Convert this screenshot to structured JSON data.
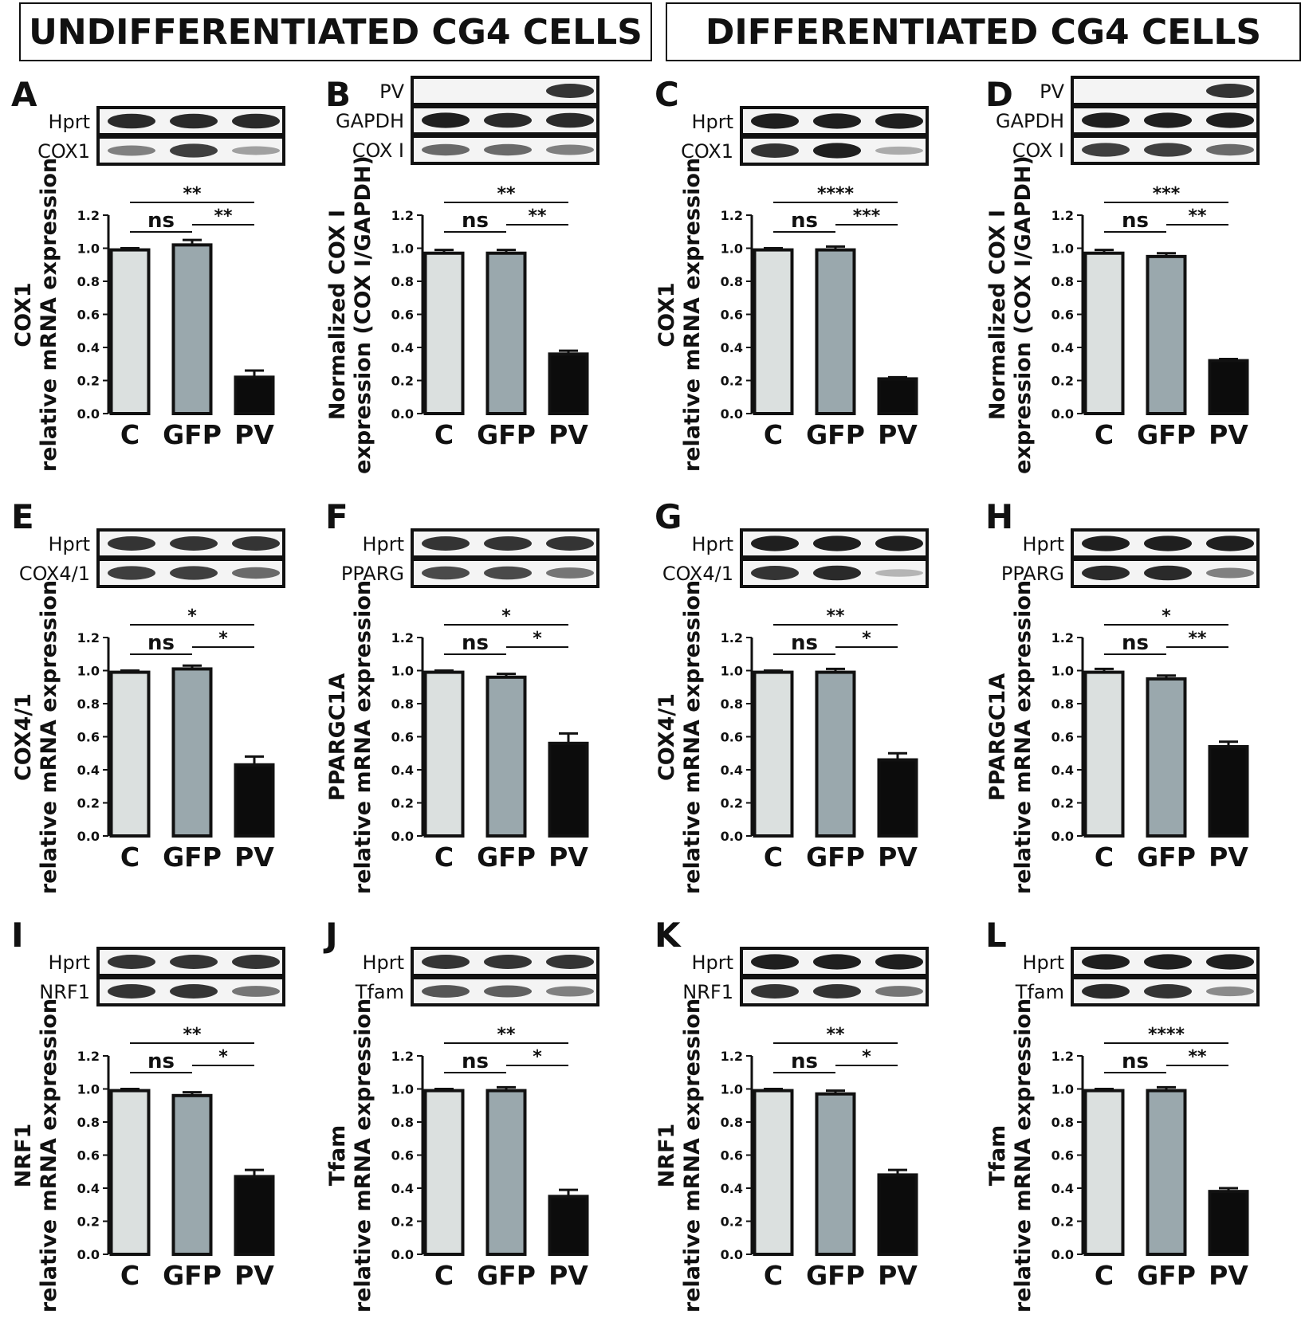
{
  "headers": {
    "left": "UNDIFFERENTIATED CG4 CELLS",
    "right": "DIFFERENTIATED CG4 CELLS"
  },
  "colors": {
    "C": "#dbe0df",
    "GFP": "#9aa8ad",
    "PV": "#0c0c0c",
    "axis": "#111111"
  },
  "chart_data": [
    {
      "panel": "A",
      "type": "bar",
      "categories": [
        "C",
        "GFP",
        "PV"
      ],
      "values": [
        0.99,
        1.02,
        0.22
      ],
      "errors": [
        0.01,
        0.03,
        0.04
      ],
      "ylabel": [
        "COX1",
        "relative mRNA expression"
      ],
      "ylim": [
        0,
        1.2
      ],
      "ticks": [
        "0.0",
        "0.2",
        "0.4",
        "0.6",
        "0.8",
        "1.0",
        "1.2"
      ],
      "blot": [
        {
          "label": "Hprt",
          "intensity": [
            0.9,
            0.9,
            0.9
          ]
        },
        {
          "label": "COX1",
          "intensity": [
            0.5,
            0.8,
            0.35
          ]
        }
      ],
      "sig": [
        {
          "from": 0,
          "to": 2,
          "label": "**"
        },
        {
          "from": 0,
          "to": 1,
          "label": "ns"
        },
        {
          "from": 1,
          "to": 2,
          "label": "**"
        }
      ]
    },
    {
      "panel": "B",
      "type": "bar",
      "categories": [
        "C",
        "GFP",
        "PV"
      ],
      "values": [
        0.97,
        0.97,
        0.36
      ],
      "errors": [
        0.02,
        0.02,
        0.02
      ],
      "ylabel": [
        "Normalized COX I",
        "expression (COX I/GAPDH)"
      ],
      "ylim": [
        0,
        1.2
      ],
      "ticks": [
        "0.0",
        "0.2",
        "0.4",
        "0.6",
        "0.8",
        "1.0",
        "1.2"
      ],
      "blot": [
        {
          "label": "PV",
          "intensity": [
            0,
            0,
            0.85
          ]
        },
        {
          "label": "GAPDH",
          "intensity": [
            0.95,
            0.9,
            0.9
          ]
        },
        {
          "label": "COX I",
          "intensity": [
            0.6,
            0.6,
            0.5
          ]
        }
      ],
      "sig": [
        {
          "from": 0,
          "to": 2,
          "label": "**"
        },
        {
          "from": 0,
          "to": 1,
          "label": "ns"
        },
        {
          "from": 1,
          "to": 2,
          "label": "**"
        }
      ]
    },
    {
      "panel": "C",
      "type": "bar",
      "categories": [
        "C",
        "GFP",
        "PV"
      ],
      "values": [
        0.99,
        0.99,
        0.21
      ],
      "errors": [
        0.01,
        0.02,
        0.01
      ],
      "ylabel": [
        "COX1",
        "relative mRNA expression"
      ],
      "ylim": [
        0,
        1.2
      ],
      "ticks": [
        "0.0",
        "0.2",
        "0.4",
        "0.6",
        "0.8",
        "1.0",
        "1.2"
      ],
      "blot": [
        {
          "label": "Hprt",
          "intensity": [
            0.95,
            0.95,
            0.95
          ]
        },
        {
          "label": "COX1",
          "intensity": [
            0.85,
            0.95,
            0.3
          ]
        }
      ],
      "sig": [
        {
          "from": 0,
          "to": 2,
          "label": "****"
        },
        {
          "from": 0,
          "to": 1,
          "label": "ns"
        },
        {
          "from": 1,
          "to": 2,
          "label": "***"
        }
      ]
    },
    {
      "panel": "D",
      "type": "bar",
      "categories": [
        "C",
        "GFP",
        "PV"
      ],
      "values": [
        0.97,
        0.95,
        0.32
      ],
      "errors": [
        0.02,
        0.02,
        0.01
      ],
      "ylabel": [
        "Normalized COX I",
        "expression (COX I/GAPDH)"
      ],
      "ylim": [
        0,
        1.2
      ],
      "ticks": [
        "0.0",
        "0.2",
        "0.4",
        "0.6",
        "0.8",
        "1.0",
        "1.2"
      ],
      "blot": [
        {
          "label": "PV",
          "intensity": [
            0,
            0,
            0.85
          ]
        },
        {
          "label": "GAPDH",
          "intensity": [
            0.95,
            0.95,
            0.95
          ]
        },
        {
          "label": "COX I",
          "intensity": [
            0.8,
            0.8,
            0.6
          ]
        }
      ],
      "sig": [
        {
          "from": 0,
          "to": 2,
          "label": "***"
        },
        {
          "from": 0,
          "to": 1,
          "label": "ns"
        },
        {
          "from": 1,
          "to": 2,
          "label": "**"
        }
      ]
    },
    {
      "panel": "E",
      "type": "bar",
      "categories": [
        "C",
        "GFP",
        "PV"
      ],
      "values": [
        0.99,
        1.01,
        0.43
      ],
      "errors": [
        0.01,
        0.02,
        0.05
      ],
      "ylabel": [
        "COX4/1",
        "relative mRNA expression"
      ],
      "ylim": [
        0,
        1.2
      ],
      "ticks": [
        "0.0",
        "0.2",
        "0.4",
        "0.6",
        "0.8",
        "1.0",
        "1.2"
      ],
      "blot": [
        {
          "label": "Hprt",
          "intensity": [
            0.85,
            0.85,
            0.85
          ]
        },
        {
          "label": "COX4/1",
          "intensity": [
            0.8,
            0.8,
            0.6
          ]
        }
      ],
      "sig": [
        {
          "from": 0,
          "to": 2,
          "label": "*"
        },
        {
          "from": 0,
          "to": 1,
          "label": "ns"
        },
        {
          "from": 1,
          "to": 2,
          "label": "*"
        }
      ]
    },
    {
      "panel": "F",
      "type": "bar",
      "categories": [
        "C",
        "GFP",
        "PV"
      ],
      "values": [
        0.99,
        0.96,
        0.56
      ],
      "errors": [
        0.01,
        0.02,
        0.06
      ],
      "ylabel": [
        "PPARGC1A",
        "relative mRNA expression"
      ],
      "ylim": [
        0,
        1.2
      ],
      "ticks": [
        "0.0",
        "0.2",
        "0.4",
        "0.6",
        "0.8",
        "1.0",
        "1.2"
      ],
      "blot": [
        {
          "label": "Hprt",
          "intensity": [
            0.85,
            0.85,
            0.85
          ]
        },
        {
          "label": "PPARG",
          "intensity": [
            0.75,
            0.75,
            0.55
          ]
        }
      ],
      "sig": [
        {
          "from": 0,
          "to": 2,
          "label": "*"
        },
        {
          "from": 0,
          "to": 1,
          "label": "ns"
        },
        {
          "from": 1,
          "to": 2,
          "label": "*"
        }
      ]
    },
    {
      "panel": "G",
      "type": "bar",
      "categories": [
        "C",
        "GFP",
        "PV"
      ],
      "values": [
        0.99,
        0.99,
        0.46
      ],
      "errors": [
        0.01,
        0.02,
        0.04
      ],
      "ylabel": [
        "COX4/1",
        "relative mRNA expression"
      ],
      "ylim": [
        0,
        1.2
      ],
      "ticks": [
        "0.0",
        "0.2",
        "0.4",
        "0.6",
        "0.8",
        "1.0",
        "1.2"
      ],
      "blot": [
        {
          "label": "Hprt",
          "intensity": [
            0.95,
            0.95,
            0.95
          ]
        },
        {
          "label": "COX4/1",
          "intensity": [
            0.85,
            0.9,
            0.25
          ]
        }
      ],
      "sig": [
        {
          "from": 0,
          "to": 2,
          "label": "**"
        },
        {
          "from": 0,
          "to": 1,
          "label": "ns"
        },
        {
          "from": 1,
          "to": 2,
          "label": "*"
        }
      ]
    },
    {
      "panel": "H",
      "type": "bar",
      "categories": [
        "C",
        "GFP",
        "PV"
      ],
      "values": [
        0.99,
        0.95,
        0.54
      ],
      "errors": [
        0.02,
        0.02,
        0.03
      ],
      "ylabel": [
        "PPARGC1A",
        "relative mRNA expression"
      ],
      "ylim": [
        0,
        1.2
      ],
      "ticks": [
        "0.0",
        "0.2",
        "0.4",
        "0.6",
        "0.8",
        "1.0",
        "1.2"
      ],
      "blot": [
        {
          "label": "Hprt",
          "intensity": [
            0.95,
            0.95,
            0.95
          ]
        },
        {
          "label": "PPARG",
          "intensity": [
            0.9,
            0.9,
            0.5
          ]
        }
      ],
      "sig": [
        {
          "from": 0,
          "to": 2,
          "label": "*"
        },
        {
          "from": 0,
          "to": 1,
          "label": "ns"
        },
        {
          "from": 1,
          "to": 2,
          "label": "**"
        }
      ]
    },
    {
      "panel": "I",
      "type": "bar",
      "categories": [
        "C",
        "GFP",
        "PV"
      ],
      "values": [
        0.99,
        0.96,
        0.47
      ],
      "errors": [
        0.01,
        0.02,
        0.04
      ],
      "ylabel": [
        "NRF1",
        "relative mRNA expression"
      ],
      "ylim": [
        0,
        1.2
      ],
      "ticks": [
        "0.0",
        "0.2",
        "0.4",
        "0.6",
        "0.8",
        "1.0",
        "1.2"
      ],
      "blot": [
        {
          "label": "Hprt",
          "intensity": [
            0.85,
            0.85,
            0.85
          ]
        },
        {
          "label": "NRF1",
          "intensity": [
            0.85,
            0.85,
            0.55
          ]
        }
      ],
      "sig": [
        {
          "from": 0,
          "to": 2,
          "label": "**"
        },
        {
          "from": 0,
          "to": 1,
          "label": "ns"
        },
        {
          "from": 1,
          "to": 2,
          "label": "*"
        }
      ]
    },
    {
      "panel": "J",
      "type": "bar",
      "categories": [
        "C",
        "GFP",
        "PV"
      ],
      "values": [
        0.99,
        0.99,
        0.35
      ],
      "errors": [
        0.01,
        0.02,
        0.04
      ],
      "ylabel": [
        "Tfam",
        "relative mRNA expression"
      ],
      "ylim": [
        0,
        1.2
      ],
      "ticks": [
        "0.0",
        "0.2",
        "0.4",
        "0.6",
        "0.8",
        "1.0",
        "1.2"
      ],
      "blot": [
        {
          "label": "Hprt",
          "intensity": [
            0.85,
            0.85,
            0.85
          ]
        },
        {
          "label": "Tfam",
          "intensity": [
            0.7,
            0.65,
            0.5
          ]
        }
      ],
      "sig": [
        {
          "from": 0,
          "to": 2,
          "label": "**"
        },
        {
          "from": 0,
          "to": 1,
          "label": "ns"
        },
        {
          "from": 1,
          "to": 2,
          "label": "*"
        }
      ]
    },
    {
      "panel": "K",
      "type": "bar",
      "categories": [
        "C",
        "GFP",
        "PV"
      ],
      "values": [
        0.99,
        0.97,
        0.48
      ],
      "errors": [
        0.01,
        0.02,
        0.03
      ],
      "ylabel": [
        "NRF1",
        "relative mRNA expression"
      ],
      "ylim": [
        0,
        1.2
      ],
      "ticks": [
        "0.0",
        "0.2",
        "0.4",
        "0.6",
        "0.8",
        "1.0",
        "1.2"
      ],
      "blot": [
        {
          "label": "Hprt",
          "intensity": [
            0.95,
            0.95,
            0.95
          ]
        },
        {
          "label": "NRF1",
          "intensity": [
            0.85,
            0.85,
            0.55
          ]
        }
      ],
      "sig": [
        {
          "from": 0,
          "to": 2,
          "label": "**"
        },
        {
          "from": 0,
          "to": 1,
          "label": "ns"
        },
        {
          "from": 1,
          "to": 2,
          "label": "*"
        }
      ]
    },
    {
      "panel": "L",
      "type": "bar",
      "categories": [
        "C",
        "GFP",
        "PV"
      ],
      "values": [
        0.99,
        0.99,
        0.38
      ],
      "errors": [
        0.01,
        0.02,
        0.02
      ],
      "ylabel": [
        "Tfam",
        "relative mRNA expression"
      ],
      "ylim": [
        0,
        1.2
      ],
      "ticks": [
        "0.0",
        "0.2",
        "0.4",
        "0.6",
        "0.8",
        "1.0",
        "1.2"
      ],
      "blot": [
        {
          "label": "Hprt",
          "intensity": [
            0.95,
            0.95,
            0.95
          ]
        },
        {
          "label": "Tfam",
          "intensity": [
            0.9,
            0.85,
            0.45
          ]
        }
      ],
      "sig": [
        {
          "from": 0,
          "to": 2,
          "label": "****"
        },
        {
          "from": 0,
          "to": 1,
          "label": "ns"
        },
        {
          "from": 1,
          "to": 2,
          "label": "**"
        }
      ]
    }
  ]
}
